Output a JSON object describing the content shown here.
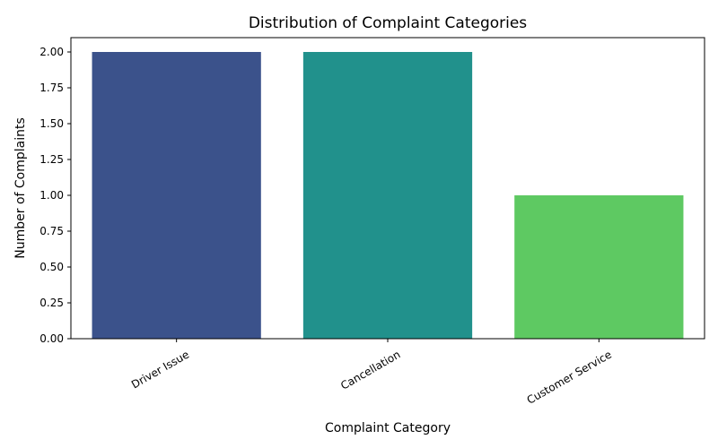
{
  "chart_data": {
    "type": "bar",
    "title": "Distribution of Complaint Categories",
    "xlabel": "Complaint Category",
    "ylabel": "Number of Complaints",
    "categories": [
      "Driver Issue",
      "Cancellation",
      "Customer Service"
    ],
    "values": [
      2,
      2,
      1
    ],
    "colors": [
      "#3b528b",
      "#21918c",
      "#5ec962"
    ],
    "ylim": [
      0,
      2.1
    ],
    "yticks": [
      "0.00",
      "0.25",
      "0.50",
      "0.75",
      "1.00",
      "1.25",
      "1.50",
      "1.75",
      "2.00"
    ],
    "ytick_values": [
      0,
      0.25,
      0.5,
      0.75,
      1.0,
      1.25,
      1.5,
      1.75,
      2.0
    ],
    "grid": false,
    "legend": "none"
  }
}
